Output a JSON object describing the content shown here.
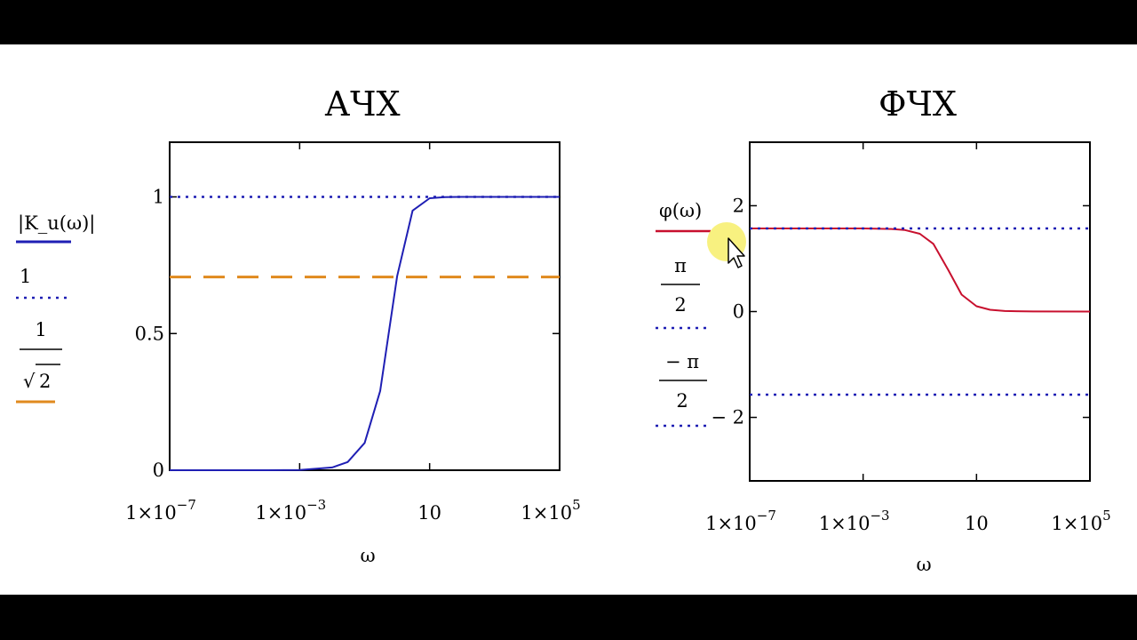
{
  "chart_data": [
    {
      "type": "line",
      "title": "АЧХ",
      "xlabel": "ω",
      "x_scale": "log",
      "xlim": [
        1e-07,
        100000.0
      ],
      "ylim": [
        0,
        1.2
      ],
      "y_ticks": [
        "0",
        "0.5",
        "1"
      ],
      "x_ticks": [
        {
          "value": 1e-07,
          "base": "1×10",
          "exp": "−7"
        },
        {
          "value": 0.001,
          "base": "1×10",
          "exp": "−3"
        },
        {
          "value": 10,
          "base": "10",
          "exp": ""
        },
        {
          "value": 100000.0,
          "base": "1×10",
          "exp": "5"
        }
      ],
      "legend": {
        "placement": "left",
        "entries": [
          {
            "label": "|K_u(ω)|",
            "color": "#1f1fb4",
            "style": "solid"
          },
          {
            "label": "1",
            "color": "#1f1fb4",
            "style": "dotted"
          },
          {
            "label_num": "1",
            "label_den": "2",
            "label_sqrt": "√",
            "color": "#e08a1e",
            "style": "dashed"
          }
        ]
      },
      "series": [
        {
          "color": "#1f1fb4",
          "style": "solid",
          "x": [
            1e-07,
            1e-05,
            0.0001,
            0.001,
            0.01,
            0.03,
            0.1,
            0.3,
            1,
            3,
            10,
            30,
            100,
            1000,
            100000.0
          ],
          "y": [
            0,
            0,
            0,
            0.001,
            0.01,
            0.03,
            0.1,
            0.29,
            0.71,
            0.95,
            0.995,
            0.9995,
            1,
            1,
            1
          ]
        },
        {
          "color": "#1f1fb4",
          "style": "dotted",
          "x": [
            1e-07,
            100000.0
          ],
          "y": [
            1,
            1
          ]
        },
        {
          "color": "#e08a1e",
          "style": "dashed",
          "x": [
            1e-07,
            100000.0
          ],
          "y": [
            0.7071,
            0.7071
          ]
        }
      ]
    },
    {
      "type": "line",
      "title": "ФЧХ",
      "xlabel": "ω",
      "x_scale": "log",
      "xlim": [
        1e-07,
        100000.0
      ],
      "ylim": [
        -3.2,
        3.2
      ],
      "y_ticks": [
        "2",
        "0",
        "− 2"
      ],
      "x_ticks": [
        {
          "value": 1e-07,
          "base": "1×10",
          "exp": "−7"
        },
        {
          "value": 0.001,
          "base": "1×10",
          "exp": "−3"
        },
        {
          "value": 10,
          "base": "10",
          "exp": ""
        },
        {
          "value": 100000.0,
          "base": "1×10",
          "exp": "5"
        }
      ],
      "legend": {
        "placement": "left",
        "entries": [
          {
            "label": "φ(ω)",
            "color": "#c8102e",
            "style": "solid"
          },
          {
            "label_num": "π",
            "label_den": "2",
            "color": "#1f1fb4",
            "style": "dotted"
          },
          {
            "label_num": "− π",
            "label_den": "2",
            "color": "#1f1fb4",
            "style": "dotted"
          }
        ]
      },
      "series": [
        {
          "color": "#c8102e",
          "style": "solid",
          "x": [
            1e-07,
            0.0001,
            0.001,
            0.01,
            0.03,
            0.1,
            0.3,
            1,
            3,
            10,
            30,
            100,
            1000,
            100000.0
          ],
          "y": [
            1.5708,
            1.5707,
            1.5698,
            1.56,
            1.54,
            1.47,
            1.28,
            0.79,
            0.32,
            0.1,
            0.033,
            0.01,
            0.001,
            0
          ]
        },
        {
          "color": "#1f1fb4",
          "style": "dotted",
          "x": [
            1e-07,
            100000.0
          ],
          "y": [
            1.5708,
            1.5708
          ]
        },
        {
          "color": "#1f1fb4",
          "style": "dotted",
          "x": [
            1e-07,
            100000.0
          ],
          "y": [
            -1.5708,
            -1.5708
          ]
        }
      ]
    }
  ]
}
